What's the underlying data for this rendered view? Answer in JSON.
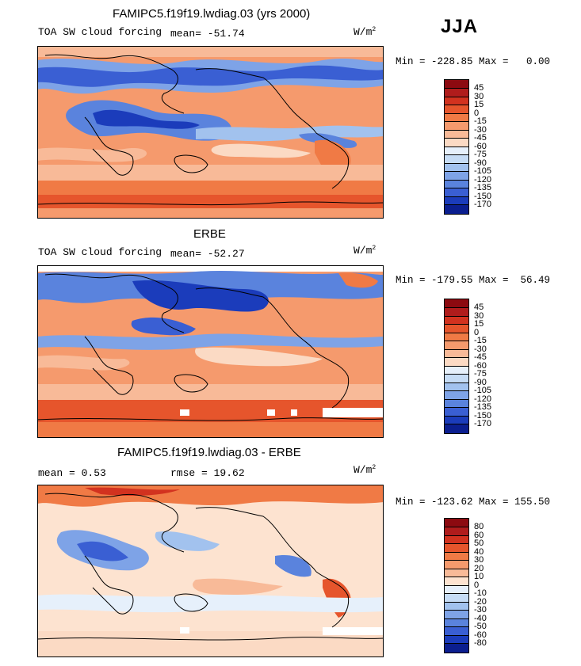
{
  "season": "JJA",
  "units": "W/m",
  "units_sup": "2",
  "panels": [
    {
      "id": "model",
      "title": "FAMIPC5.f19f19.lwdiag.03 (yrs 2000)",
      "variable": "TOA SW cloud forcing",
      "stat1": "mean= -51.74",
      "minmax": "Min = -228.85 Max =   0.00",
      "colorbar_ticks": [
        "45",
        "30",
        "15",
        "0",
        "-15",
        "-30",
        "-45",
        "-60",
        "-75",
        "-90",
        "-105",
        "-120",
        "-135",
        "-150",
        "-170"
      ],
      "colorbar_colors": [
        "#8c0a10",
        "#b01c1c",
        "#d2321f",
        "#e6552c",
        "#f07a45",
        "#f59a6d",
        "#f8ba98",
        "#fbdac4",
        "#e6f0fb",
        "#c6dcf5",
        "#a2c2ee",
        "#7ea3e7",
        "#5a83dd",
        "#3a5fd3",
        "#1b3cbb",
        "#0b1e8f"
      ]
    },
    {
      "id": "obs",
      "title": "ERBE",
      "variable": "TOA SW cloud forcing",
      "stat1": "mean= -52.27",
      "minmax": "Min = -179.55 Max =  56.49",
      "colorbar_ticks": [
        "45",
        "30",
        "15",
        "0",
        "-15",
        "-30",
        "-45",
        "-60",
        "-75",
        "-90",
        "-105",
        "-120",
        "-135",
        "-150",
        "-170"
      ],
      "colorbar_colors": [
        "#8c0a10",
        "#b01c1c",
        "#d2321f",
        "#e6552c",
        "#f07a45",
        "#f59a6d",
        "#f8ba98",
        "#fbdac4",
        "#e6f0fb",
        "#c6dcf5",
        "#a2c2ee",
        "#7ea3e7",
        "#5a83dd",
        "#3a5fd3",
        "#1b3cbb",
        "#0b1e8f"
      ]
    },
    {
      "id": "diff",
      "title": "FAMIPC5.f19f19.lwdiag.03 - ERBE",
      "stat1": "mean =   0.53",
      "stat2": "rmse =  19.62",
      "minmax": "Min = -123.62 Max = 155.50",
      "colorbar_ticks": [
        "80",
        "60",
        "50",
        "40",
        "30",
        "20",
        "10",
        "0",
        "-10",
        "-20",
        "-30",
        "-40",
        "-50",
        "-60",
        "-80"
      ],
      "colorbar_colors": [
        "#8c0a10",
        "#b01c1c",
        "#d2321f",
        "#e6552c",
        "#f07a45",
        "#f59a6d",
        "#f8ba98",
        "#fde3d0",
        "#e6f0fb",
        "#c6dcf5",
        "#a2c2ee",
        "#7ea3e7",
        "#5a83dd",
        "#3a5fd3",
        "#1b3cbb",
        "#0b1e8f"
      ]
    }
  ]
}
